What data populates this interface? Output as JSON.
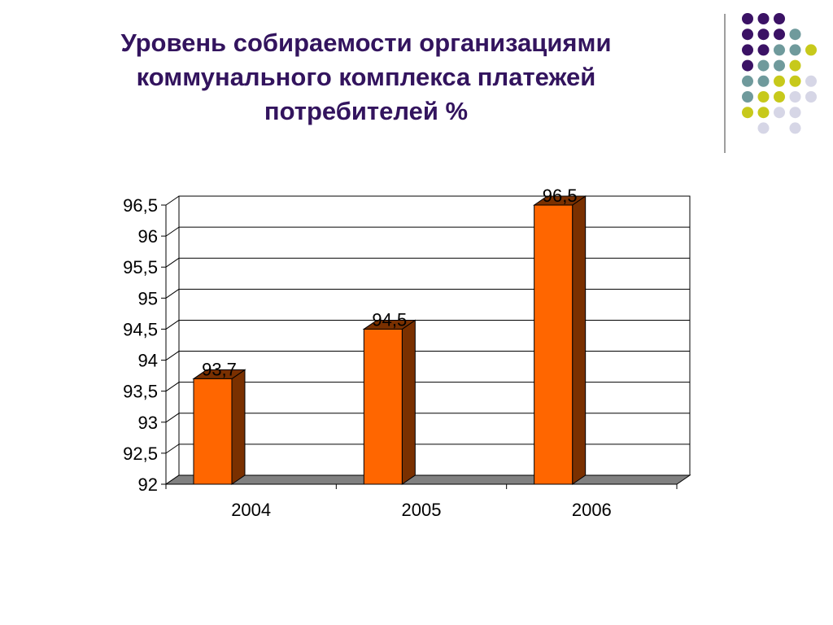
{
  "slide": {
    "title": "Уровень собираемости организациями\nкоммунального комплекса платежей\nпотребителей %"
  },
  "decoration": {
    "dot_colors": [
      "#3b1265",
      "#6f9a9c",
      "#c7c91b",
      "#d6d6e6"
    ]
  },
  "chart_data": {
    "type": "bar",
    "categories": [
      "2004",
      "2005",
      "2006"
    ],
    "series": [
      {
        "values": [
          93.7,
          94.5,
          96.5
        ],
        "labels": [
          "93,7",
          "94,5",
          "96,5"
        ]
      }
    ],
    "y_ticks": [
      "92",
      "92,5",
      "93",
      "93,5",
      "94",
      "94,5",
      "95",
      "95,5",
      "96",
      "96,5"
    ],
    "ylim": [
      92,
      96.5
    ],
    "grid": true,
    "style": "3d",
    "colors": {
      "bar_front": "#ff6600",
      "bar_side": "#7a3000",
      "floor": "#808080"
    }
  }
}
